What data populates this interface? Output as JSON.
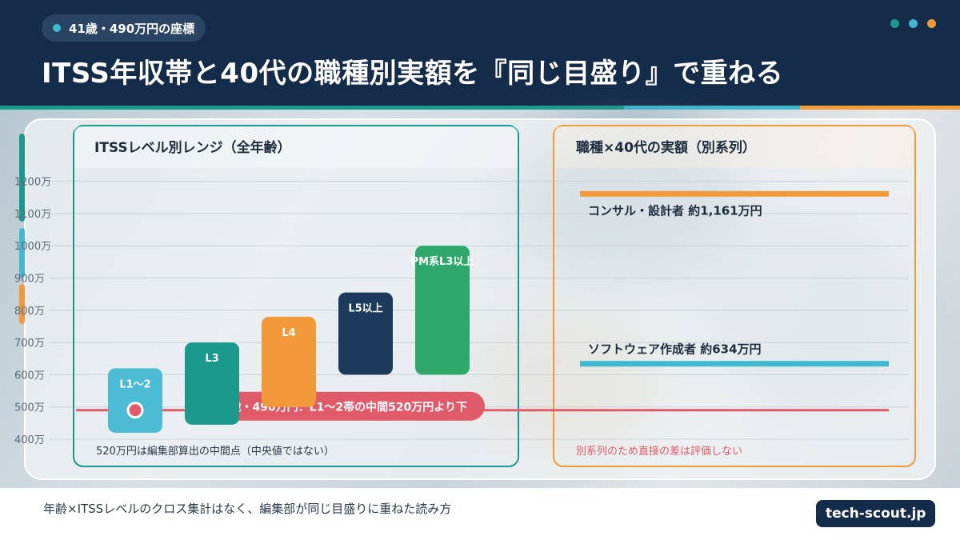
{
  "header": {
    "badge_text": "41歳・490万円の座標",
    "title": "ITSS年収帯と40代の職種別実額を『同じ目盛り』で重ねる",
    "window_dots": [
      "#1a9a8c",
      "#3fb8d0",
      "#f29a3a"
    ]
  },
  "chart_data": {
    "type": "bar",
    "y_unit": "万",
    "ylim": [
      400,
      1100
    ],
    "y_ticks": [
      "400万",
      "500万",
      "600万",
      "700万",
      "800万",
      "900万",
      "1000万",
      "1100万",
      "1200万"
    ],
    "left_panel": {
      "title": "ITSSレベル別レンジ（全年齢）",
      "bars": [
        {
          "label": "L1〜2",
          "low": 420,
          "high": 620,
          "color": "#4bbcd4"
        },
        {
          "label": "L3",
          "low": 445,
          "high": 700,
          "color": "#1a9a8c"
        },
        {
          "label": "L4",
          "low": 500,
          "high": 780,
          "color": "#f29a3a"
        },
        {
          "label": "L5以上",
          "low": 600,
          "high": 855,
          "color": "#1c3a5c"
        },
        {
          "label": "PM系L3以上",
          "low": 600,
          "high": 1000,
          "color": "#2ea86a"
        }
      ],
      "marker": {
        "label": "L1〜2",
        "value": 490
      },
      "note": "520万円は編集部算出の中間点（中央値ではない）"
    },
    "reference_line": {
      "value": 490,
      "label": "41歳・490万円：L1〜2帯の中間520万円より下",
      "color": "#e05a6a"
    },
    "right_panel": {
      "title": "職種×40代の実額（別系列）",
      "lines": [
        {
          "label": "コンサル・設計者 約1,161万円",
          "value": 1161,
          "color": "#f29a3a"
        },
        {
          "label": "ソフトウェア作成者 約634万円",
          "value": 634,
          "color": "#3fb8d0"
        }
      ],
      "note": "別系列のため直接の差は評価しない"
    }
  },
  "footer": {
    "note": "年齢×ITSSレベルのクロス集計はなく、編集部が同じ目盛りに重ねた読み方",
    "site": "tech-scout.jp"
  }
}
